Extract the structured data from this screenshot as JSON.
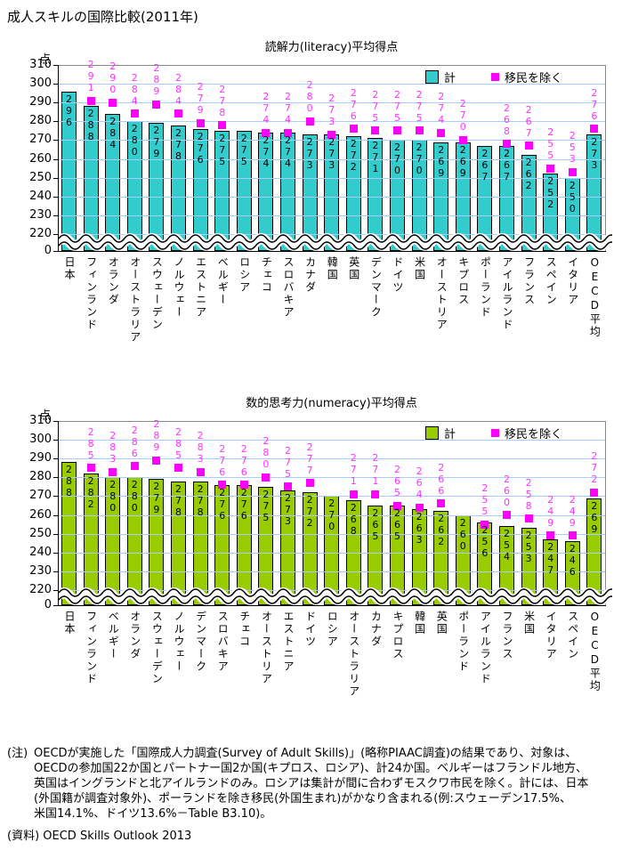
{
  "page_title": "成人スキルの国際比較(2011年)",
  "unit_label": "点",
  "colors": {
    "literacy_bar": "#33CCCC",
    "numeracy_bar": "#99CC00",
    "marker": "#FF00FF",
    "marker_label": "#FF33FF",
    "grid": "#AACCFF",
    "frame": "#888888"
  },
  "y_axis": {
    "ticks": [
      310,
      300,
      290,
      280,
      270,
      260,
      250,
      240,
      230,
      220
    ],
    "zero_label": "0",
    "break_between": [
      220,
      0
    ]
  },
  "chart_data": [
    {
      "type": "bar",
      "title": "読解力(literacy)平均得点",
      "ylabel": "点",
      "xlabel": "",
      "ylim": [
        0,
        310
      ],
      "grid": true,
      "legend_position": "top-right",
      "bar_color": "#33CCCC",
      "categories": [
        "日本",
        "フィンランド",
        "オランダ",
        "オーストラリア",
        "スウェーデン",
        "ノルウェー",
        "エストニア",
        "ベルギー",
        "ロシア",
        "チェコ",
        "スロバキア",
        "カナダ",
        "韓国",
        "英国",
        "デンマーク",
        "ドイツ",
        "米国",
        "オーストリア",
        "キプロス",
        "ポーランド",
        "アイルランド",
        "フランス",
        "スペイン",
        "イタリア",
        "OECD平均"
      ],
      "series": [
        {
          "name": "計",
          "values": [
            296,
            288,
            284,
            280,
            279,
            278,
            276,
            275,
            275,
            274,
            274,
            273,
            273,
            272,
            271,
            270,
            270,
            269,
            269,
            267,
            267,
            262,
            252,
            250,
            273
          ]
        },
        {
          "name": "移民を除く",
          "values": [
            null,
            291,
            290,
            284,
            289,
            284,
            279,
            278,
            null,
            274,
            274,
            280,
            273,
            276,
            275,
            275,
            275,
            274,
            270,
            null,
            268,
            267,
            255,
            253,
            276
          ]
        }
      ]
    },
    {
      "type": "bar",
      "title": "数的思考力(numeracy)平均得点",
      "ylabel": "点",
      "xlabel": "",
      "ylim": [
        0,
        310
      ],
      "grid": true,
      "legend_position": "top-right",
      "bar_color": "#99CC00",
      "categories": [
        "日本",
        "フィンランド",
        "ベルギー",
        "オランダ",
        "スウェーデン",
        "ノルウェー",
        "デンマーク",
        "スロバキア",
        "チェコ",
        "オーストリア",
        "エストニア",
        "ドイツ",
        "ロシア",
        "オーストラリア",
        "カナダ",
        "キプロス",
        "韓国",
        "英国",
        "ポーランド",
        "アイルランド",
        "フランス",
        "米国",
        "イタリア",
        "スペイン",
        "OECD平均"
      ],
      "series": [
        {
          "name": "計",
          "values": [
            288,
            282,
            280,
            280,
            279,
            278,
            278,
            276,
            276,
            275,
            273,
            272,
            270,
            268,
            265,
            265,
            263,
            262,
            260,
            256,
            254,
            253,
            247,
            246,
            269
          ]
        },
        {
          "name": "移民を除く",
          "values": [
            null,
            285,
            283,
            286,
            289,
            285,
            283,
            276,
            276,
            280,
            275,
            277,
            null,
            271,
            271,
            265,
            264,
            266,
            null,
            255,
            260,
            258,
            249,
            249,
            272
          ]
        }
      ]
    }
  ],
  "note": {
    "label": "(注)",
    "lines": [
      "OECDが実施した「国際成人力調査(Survey of Adult Skills)」(略称PIAAC調査)の結果であり、対象は、",
      "OECDの参加国22か国とパートナー国2か国(キプロス、ロシア)、計24か国。ベルギーはフランドル地方、",
      "英国はイングランドと北アイルランドのみ。ロシアは集計が間に合わずモスクワ市民を除く。計には、日本",
      "(外国籍が調査対象外)、ポーランドを除き移民(外国生まれ)がかなり含まれる(例:スウェーデン17.5%、",
      "米国14.1%、ドイツ13.6%－Table B3.10)。"
    ]
  },
  "source": "(資料) OECD Skills Outlook 2013"
}
